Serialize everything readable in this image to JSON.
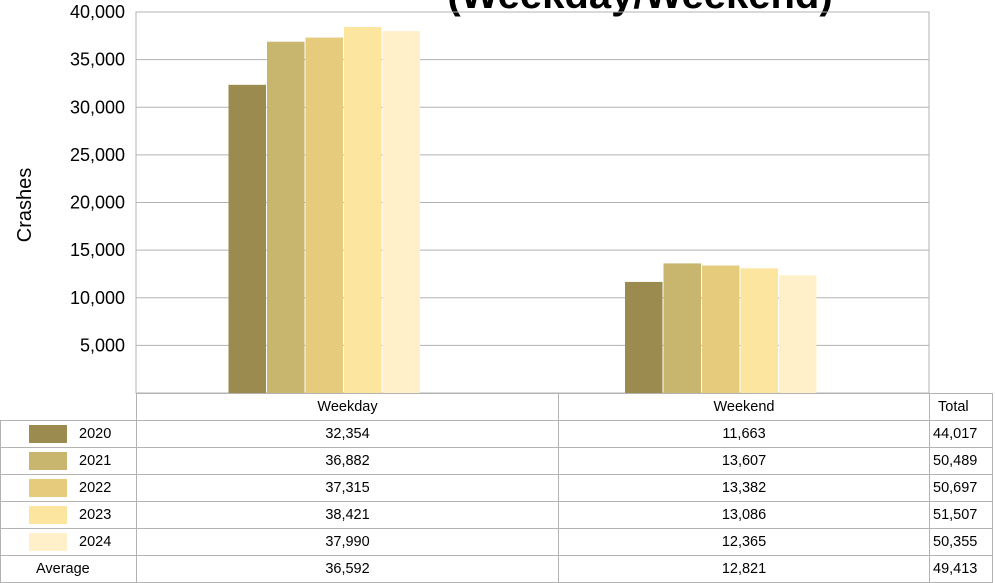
{
  "chart_data": {
    "type": "bar",
    "title": "(Weekday/Weekend)",
    "ylabel": "Crashes",
    "xlabel": "",
    "ylim": [
      0,
      40000
    ],
    "yticks": [
      "5,000",
      "10,000",
      "15,000",
      "20,000",
      "25,000",
      "30,000",
      "35,000",
      "40,000"
    ],
    "ytick_values": [
      5000,
      10000,
      15000,
      20000,
      25000,
      30000,
      35000,
      40000
    ],
    "grid": true,
    "legend": "table-below",
    "categories": [
      "Weekday",
      "Weekend"
    ],
    "series": [
      {
        "name": "2020",
        "color": "#9b8b4f",
        "values": [
          32354,
          11663
        ]
      },
      {
        "name": "2021",
        "color": "#c9b66e",
        "values": [
          36882,
          13607
        ]
      },
      {
        "name": "2022",
        "color": "#e6cb7c",
        "values": [
          37315,
          13382
        ]
      },
      {
        "name": "2023",
        "color": "#fbe59f",
        "values": [
          38421,
          13086
        ]
      },
      {
        "name": "2024",
        "color": "#fff0c9",
        "values": [
          37990,
          12365
        ]
      }
    ],
    "table": {
      "total_header": "Total",
      "rows": [
        {
          "label": "2020",
          "cells": [
            "32,354",
            "11,663"
          ],
          "total": "44,017"
        },
        {
          "label": "2021",
          "cells": [
            "36,882",
            "13,607"
          ],
          "total": "50,489"
        },
        {
          "label": "2022",
          "cells": [
            "37,315",
            "13,382"
          ],
          "total": "50,697"
        },
        {
          "label": "2023",
          "cells": [
            "38,421",
            "13,086"
          ],
          "total": "51,507"
        },
        {
          "label": "2024",
          "cells": [
            "37,990",
            "12,365"
          ],
          "total": "50,355"
        }
      ],
      "average": {
        "label": "Average",
        "cells": [
          "36,592",
          "12,821"
        ],
        "total": "49,413"
      }
    }
  }
}
